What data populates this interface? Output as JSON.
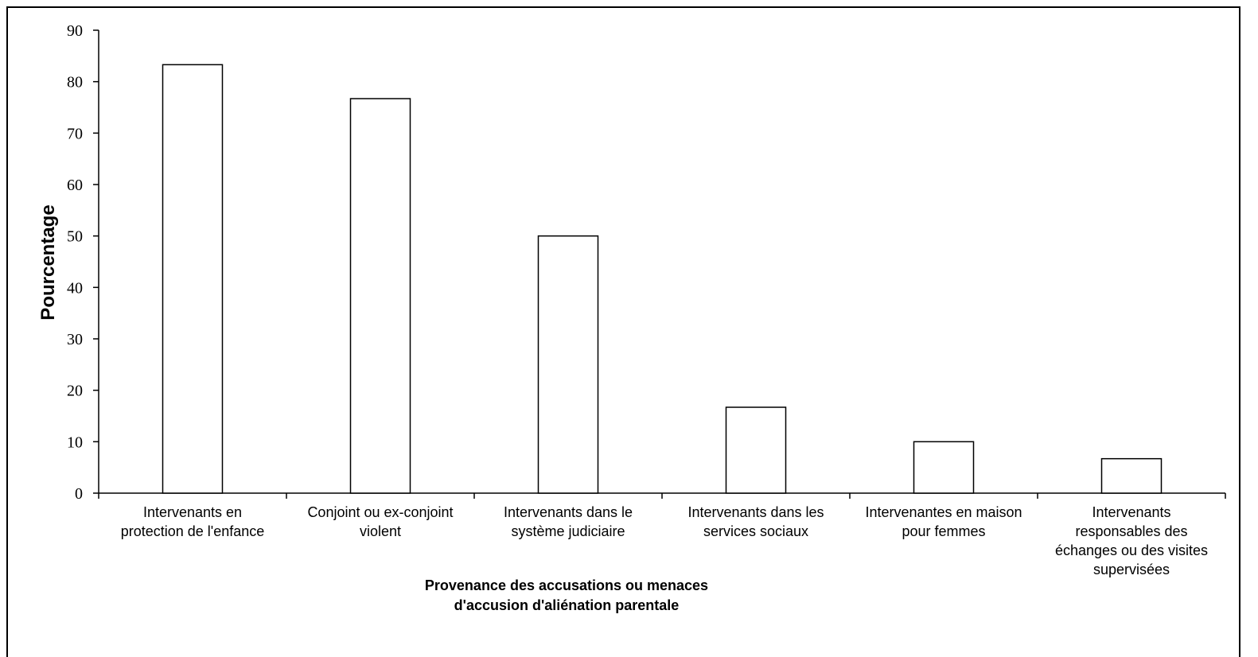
{
  "chart_data": {
    "type": "bar",
    "title": "",
    "ylabel": "Pourcentage",
    "xlabel_lines": [
      "Provenance des accusations ou menaces",
      "d'accusion d'aliénation parentale"
    ],
    "ylim": [
      0,
      90
    ],
    "yticks": [
      0,
      10,
      20,
      30,
      40,
      50,
      60,
      70,
      80,
      90
    ],
    "grid": false,
    "legend": "none",
    "bar_fill": "#ffffff",
    "bar_stroke": "#000000",
    "categories": [
      [
        "Intervenants en",
        "protection de l'enfance"
      ],
      [
        "Conjoint ou ex-conjoint",
        "violent"
      ],
      [
        "Intervenants dans le",
        "système judiciaire"
      ],
      [
        "Intervenants dans les",
        "services sociaux"
      ],
      [
        "Intervenantes en maison",
        "pour femmes"
      ],
      [
        "Intervenants",
        "responsables des",
        "échanges ou des visites",
        "supervisées"
      ]
    ],
    "values": [
      83.3,
      76.7,
      50.0,
      16.7,
      10.0,
      6.7
    ]
  }
}
